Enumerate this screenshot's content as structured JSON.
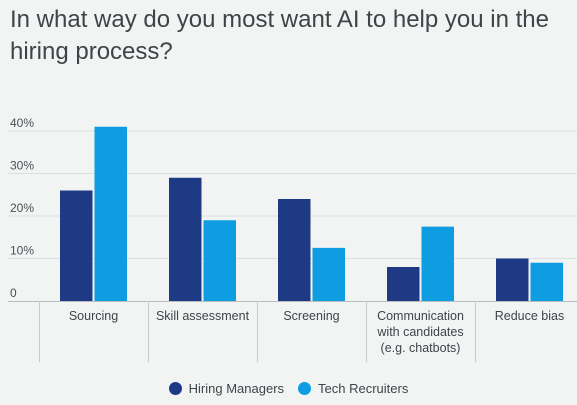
{
  "chart_data": {
    "type": "bar",
    "title": "In what way do you most want AI to help you in the hiring process?",
    "categories": [
      [
        "Sourcing"
      ],
      [
        "Skill assessment"
      ],
      [
        "Screening"
      ],
      [
        "Communication",
        "with candidates",
        "(e.g. chatbots)"
      ],
      [
        "Reduce bias"
      ]
    ],
    "series": [
      {
        "name": "Hiring Managers",
        "color": "#1f3a85",
        "values": [
          26,
          29,
          24,
          8,
          10
        ]
      },
      {
        "name": "Tech Recruiters",
        "color": "#0d9de0",
        "values": [
          41,
          19,
          12.5,
          17.5,
          9
        ]
      }
    ],
    "yticks": [
      "0",
      "10%",
      "20%",
      "30%",
      "40%"
    ],
    "ytick_values": [
      0,
      10,
      20,
      30,
      40
    ],
    "ylim": [
      0,
      40
    ],
    "grid": true,
    "legend": "bottom-center"
  }
}
